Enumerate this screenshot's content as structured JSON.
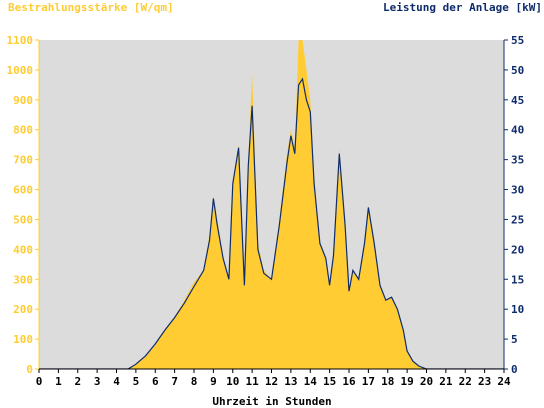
{
  "chart_data": {
    "type": "area",
    "ylabel_left": "Bestrahlungsstärke [W/qm]",
    "ylabel_right": "Leistung der Anlage [kW]",
    "xlabel": "Uhrzeit in Stunden",
    "xlim": [
      0,
      24
    ],
    "ylim_left": [
      0,
      1100
    ],
    "ylim_right": [
      0,
      55
    ],
    "x_ticks": [
      "0",
      "1",
      "2",
      "3",
      "4",
      "5",
      "6",
      "7",
      "8",
      "9",
      "10",
      "11",
      "12",
      "13",
      "14",
      "15",
      "16",
      "17",
      "18",
      "19",
      "20",
      "21",
      "22",
      "23",
      "24"
    ],
    "y_ticks_left": [
      "0",
      "100",
      "200",
      "300",
      "400",
      "500",
      "600",
      "700",
      "800",
      "900",
      "1000",
      "1100"
    ],
    "y_ticks_right": [
      "0",
      "5",
      "10",
      "15",
      "20",
      "25",
      "30",
      "35",
      "40",
      "45",
      "50",
      "55"
    ],
    "grid": false,
    "colors": {
      "irradiance": "#ffcc33",
      "power": "#0f2c6b",
      "plot_bg": "#dcdcdc"
    },
    "series": [
      {
        "name": "Bestrahlungsstärke [W/qm]",
        "axis": "left",
        "x": [
          0,
          4.6,
          5.0,
          5.5,
          6.0,
          6.5,
          7.0,
          7.5,
          8.0,
          8.5,
          8.8,
          9.0,
          9.2,
          9.5,
          9.8,
          10.0,
          10.3,
          10.6,
          10.8,
          11.0,
          11.3,
          11.6,
          12.0,
          12.4,
          12.8,
          13.0,
          13.2,
          13.4,
          13.6,
          13.8,
          14.0,
          14.2,
          14.5,
          14.8,
          15.0,
          15.2,
          15.5,
          15.8,
          16.0,
          16.2,
          16.5,
          16.8,
          17.0,
          17.3,
          17.6,
          17.9,
          18.2,
          18.5,
          18.8,
          19.0,
          19.3,
          19.6,
          20.0,
          20.5,
          21.0,
          24
        ],
        "y": [
          0,
          0,
          15,
          40,
          80,
          130,
          175,
          230,
          290,
          330,
          450,
          580,
          500,
          370,
          300,
          620,
          750,
          290,
          700,
          990,
          420,
          330,
          300,
          500,
          720,
          800,
          740,
          1100,
          1150,
          1000,
          900,
          650,
          420,
          370,
          280,
          380,
          740,
          500,
          260,
          330,
          300,
          420,
          540,
          420,
          280,
          230,
          240,
          200,
          130,
          60,
          25,
          10,
          0,
          0,
          0,
          0
        ]
      },
      {
        "name": "Leistung der Anlage [kW]",
        "axis": "right",
        "x": [
          0,
          4.6,
          5.0,
          5.5,
          6.0,
          6.5,
          7.0,
          7.5,
          8.0,
          8.5,
          8.8,
          9.0,
          9.2,
          9.5,
          9.8,
          10.0,
          10.3,
          10.6,
          10.8,
          11.0,
          11.3,
          11.6,
          12.0,
          12.4,
          12.8,
          13.0,
          13.2,
          13.4,
          13.6,
          13.8,
          14.0,
          14.2,
          14.5,
          14.8,
          15.0,
          15.2,
          15.5,
          15.8,
          16.0,
          16.2,
          16.5,
          16.8,
          17.0,
          17.3,
          17.6,
          17.9,
          18.2,
          18.5,
          18.8,
          19.0,
          19.3,
          19.6,
          20.0,
          20.5,
          21.0,
          24
        ],
        "y": [
          0,
          0,
          0.8,
          2.2,
          4.2,
          6.5,
          8.6,
          11.0,
          13.8,
          16.5,
          21.5,
          28.5,
          24.0,
          18.5,
          15.0,
          31.0,
          37.0,
          14.0,
          34.0,
          44.0,
          20.0,
          16.0,
          15.0,
          24.0,
          34.5,
          39.0,
          36.0,
          47.5,
          48.5,
          45.0,
          43.0,
          31.0,
          21.0,
          18.5,
          14.0,
          19.0,
          36.0,
          24.0,
          13.0,
          16.5,
          15.0,
          21.0,
          27.0,
          21.0,
          14.0,
          11.5,
          12.0,
          10.0,
          6.5,
          3.0,
          1.3,
          0.5,
          0,
          0,
          0,
          0
        ]
      }
    ]
  }
}
